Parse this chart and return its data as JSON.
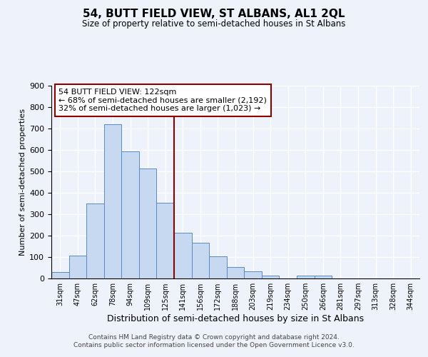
{
  "title": "54, BUTT FIELD VIEW, ST ALBANS, AL1 2QL",
  "subtitle": "Size of property relative to semi-detached houses in St Albans",
  "xlabel": "Distribution of semi-detached houses by size in St Albans",
  "ylabel": "Number of semi-detached properties",
  "bin_labels": [
    "31sqm",
    "47sqm",
    "62sqm",
    "78sqm",
    "94sqm",
    "109sqm",
    "125sqm",
    "141sqm",
    "156sqm",
    "172sqm",
    "188sqm",
    "203sqm",
    "219sqm",
    "234sqm",
    "250sqm",
    "266sqm",
    "281sqm",
    "297sqm",
    "313sqm",
    "328sqm",
    "344sqm"
  ],
  "bar_heights": [
    30,
    108,
    350,
    720,
    594,
    515,
    355,
    212,
    168,
    105,
    52,
    33,
    14,
    0,
    12,
    13,
    0,
    0,
    0,
    0,
    0
  ],
  "bar_color": "#c6d9f1",
  "bar_edge_color": "#5a8ac6",
  "property_bin_index": 6,
  "vline_color": "#8b0000",
  "annotation_title": "54 BUTT FIELD VIEW: 122sqm",
  "annotation_line1": "← 68% of semi-detached houses are smaller (2,192)",
  "annotation_line2": "32% of semi-detached houses are larger (1,023) →",
  "annotation_box_color": "#ffffff",
  "annotation_box_edge_color": "#8b0000",
  "ylim": [
    0,
    900
  ],
  "yticks": [
    0,
    100,
    200,
    300,
    400,
    500,
    600,
    700,
    800,
    900
  ],
  "footer_line1": "Contains HM Land Registry data © Crown copyright and database right 2024.",
  "footer_line2": "Contains public sector information licensed under the Open Government Licence v3.0.",
  "background_color": "#eef2fb",
  "plot_background_color": "#eef2fb",
  "grid_color": "#ffffff",
  "title_fontsize": 11,
  "subtitle_fontsize": 8.5,
  "xlabel_fontsize": 9,
  "ylabel_fontsize": 8,
  "footer_fontsize": 6.5,
  "annot_fontsize": 8
}
